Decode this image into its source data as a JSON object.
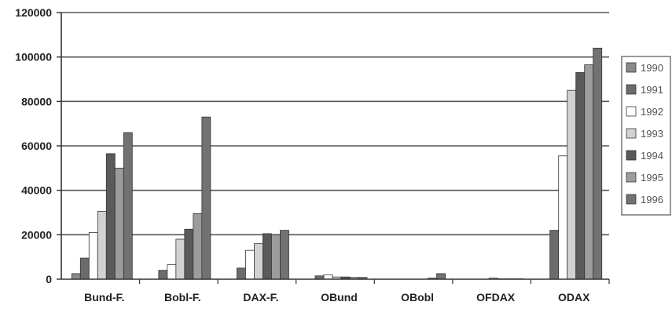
{
  "chart_data": {
    "type": "bar",
    "title": "",
    "xlabel": "",
    "ylabel": "",
    "ylim": [
      0,
      120000
    ],
    "yticks": [
      "0",
      "20000",
      "40000",
      "60000",
      "80000",
      "100000",
      "120000"
    ],
    "grid": true,
    "legend_position": "right",
    "categories": [
      "Bund-F.",
      "Bobl-F.",
      "DAX-F.",
      "OBund",
      "OBobl",
      "OFDAX",
      "ODAX"
    ],
    "series": [
      {
        "name": "1990",
        "color": "#8a8a8a",
        "values": [
          2500,
          0,
          0,
          0,
          0,
          0,
          0
        ]
      },
      {
        "name": "1991",
        "color": "#6c6c6c",
        "values": [
          9500,
          4000,
          5000,
          1500,
          0,
          0,
          22000
        ]
      },
      {
        "name": "1992",
        "color": "#ffffff",
        "values": [
          21000,
          6500,
          13000,
          2000,
          0,
          0,
          55500
        ]
      },
      {
        "name": "1993",
        "color": "#d2d2d2",
        "values": [
          30500,
          18000,
          16000,
          1000,
          0,
          500,
          85000
        ]
      },
      {
        "name": "1994",
        "color": "#5a5a5a",
        "values": [
          56500,
          22500,
          20500,
          1000,
          0,
          200,
          93000
        ]
      },
      {
        "name": "1995",
        "color": "#9c9c9c",
        "values": [
          50000,
          29500,
          20000,
          800,
          500,
          200,
          96500
        ]
      },
      {
        "name": "1996",
        "color": "#727272",
        "values": [
          66000,
          73000,
          22000,
          800,
          2500,
          200,
          104000
        ]
      }
    ]
  }
}
